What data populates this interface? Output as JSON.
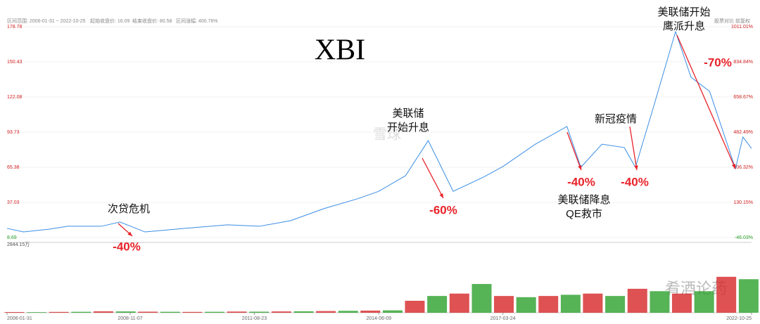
{
  "header": {
    "range": "区间范围: 2006-01-31 ~ 2022-10-25",
    "start": "起始收盘价: 16.09",
    "end": "结束收盘价: 80.58",
    "change": "区间涨幅: 400.76%",
    "compare": "股票对比",
    "adjust": "前复权"
  },
  "watermarks": [
    "雪球",
    "肴酒论药"
  ],
  "chart_data": [
    {
      "type": "line",
      "title": "XBI",
      "x": [
        "2006-01-31",
        "2006-06-15",
        "2007-01-15",
        "2007-06-15",
        "2008-03-15",
        "2008-08-15",
        "2009-03-09",
        "2010-01-15",
        "2011-01-15",
        "2011-10-03",
        "2012-06-15",
        "2013-03-15",
        "2013-12-15",
        "2014-06-09",
        "2015-01-15",
        "2015-07-20",
        "2016-02-10",
        "2016-10-15",
        "2017-03-24",
        "2017-12-15",
        "2018-09-01",
        "2018-12-24",
        "2019-06-15",
        "2019-12-15",
        "2020-03-16",
        "2020-08-15",
        "2021-02-08",
        "2021-06-15",
        "2021-11-15",
        "2022-06-15",
        "2022-08-15",
        "2022-10-25"
      ],
      "series": [
        {
          "name": "XBI",
          "color": "#3a8ee6",
          "values": [
            16.09,
            13.2,
            15.5,
            17.8,
            17.8,
            21.2,
            13.2,
            16,
            19,
            17.8,
            22.3,
            32,
            39.9,
            46,
            58.6,
            86.9,
            46,
            57.4,
            66,
            84,
            98.3,
            65.4,
            84,
            81.3,
            65.4,
            115.3,
            174.8,
            138,
            126.6,
            64.2,
            89.8,
            80.58
          ]
        }
      ],
      "xlim": [
        "2006-01-31",
        "2022-10-25"
      ],
      "xticks": [
        "2006-01-31",
        "2008-11-07",
        "2011-08-23",
        "2014-06-09",
        "2017-03-24",
        "2022-10-25"
      ],
      "ylim": [
        8.69,
        178.78
      ],
      "yticks": [
        8.69,
        37.03,
        65.38,
        93.73,
        122.08,
        150.43,
        178.78
      ],
      "y2lim": [
        -46.03,
        1011.01
      ],
      "y2ticks": [
        {
          "value": -46.03,
          "label": "-46.03%"
        },
        {
          "value": 130.15,
          "label": "130.15%"
        },
        {
          "value": 306.32,
          "label": "306.32%"
        },
        {
          "value": 482.49,
          "label": "482.49%"
        },
        {
          "value": 658.67,
          "label": "658.67%"
        },
        {
          "value": 834.84,
          "label": "834.84%"
        },
        {
          "value": 1011.01,
          "label": "1011.01%"
        }
      ],
      "annotations": [
        {
          "lines": [
            "次贷危机"
          ],
          "change": "-40%"
        },
        {
          "lines": [
            "美联储",
            "开始升息"
          ],
          "change": "-60%"
        },
        {
          "lines": [
            "美联储降息",
            "QE救市"
          ],
          "change": "-40%"
        },
        {
          "lines": [
            "新冠疫情"
          ],
          "change": "-40%"
        },
        {
          "lines": [
            "美联储开始",
            "鹰派升息"
          ],
          "change": "-70%"
        }
      ]
    },
    {
      "type": "bar",
      "x": [
        "2006-04-01",
        "2006-10-01",
        "2007-04-01",
        "2007-10-01",
        "2008-04-01",
        "2008-10-01",
        "2009-04-01",
        "2009-10-01",
        "2010-04-01",
        "2010-10-01",
        "2011-04-01",
        "2011-10-01",
        "2012-04-01",
        "2012-10-01",
        "2013-04-01",
        "2013-10-01",
        "2014-04-01",
        "2014-10-01",
        "2015-04-01",
        "2015-10-01",
        "2016-04-01",
        "2016-10-01",
        "2017-04-01",
        "2017-10-01",
        "2018-04-01",
        "2018-10-01",
        "2019-04-01",
        "2019-10-01",
        "2020-04-01",
        "2020-10-01",
        "2021-04-01",
        "2021-10-01",
        "2022-04-01",
        "2022-10-01"
      ],
      "values": [
        30,
        25,
        35,
        40,
        60,
        55,
        45,
        40,
        35,
        40,
        50,
        45,
        55,
        60,
        70,
        80,
        90,
        100,
        500,
        700,
        800,
        1200,
        700,
        650,
        700,
        750,
        800,
        700,
        1000,
        900,
        800,
        900,
        1500,
        1400
      ],
      "colors": [
        "#d62728",
        "#2ca02c"
      ],
      "ylim": [
        0,
        2844.15
      ],
      "yticks": [
        {
          "value": 2844.15,
          "label": "2844.15万"
        }
      ]
    }
  ]
}
